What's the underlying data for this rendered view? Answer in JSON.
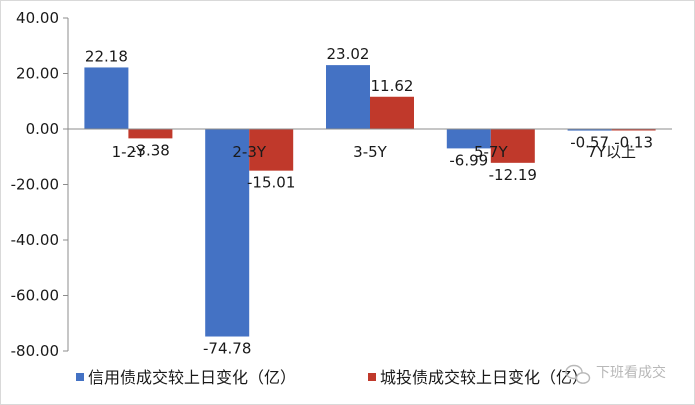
{
  "chart_data": {
    "type": "bar",
    "categories": [
      "1-2Y",
      "2-3Y",
      "3-5Y",
      "5-7Y",
      "7Y以上"
    ],
    "series": [
      {
        "name": "信用债成交较上日变化（亿）",
        "values": [
          22.18,
          -74.78,
          23.02,
          -6.99,
          -0.57
        ]
      },
      {
        "name": "城投债成交较上日变化（亿）",
        "values": [
          -3.38,
          -15.01,
          11.62,
          -12.19,
          -0.13
        ]
      }
    ],
    "data_labels": [
      [
        "22.18",
        "-74.78",
        "23.02",
        "-6.99",
        "-0.57"
      ],
      [
        "-3.38",
        "-15.01",
        "11.62",
        "-12.19",
        "-0.13"
      ]
    ],
    "ylim": [
      -80,
      40
    ],
    "yticks": [
      "40.00",
      "20.00",
      "0.00",
      "-20.00",
      "-40.00",
      "-60.00",
      "-80.00"
    ],
    "ytick_values": [
      40,
      20,
      0,
      -20,
      -40,
      -60,
      -80
    ],
    "grid": false,
    "legend_position": "bottom",
    "colors": [
      "#4472c4",
      "#c0392b"
    ],
    "watermark": "下班看成交"
  }
}
